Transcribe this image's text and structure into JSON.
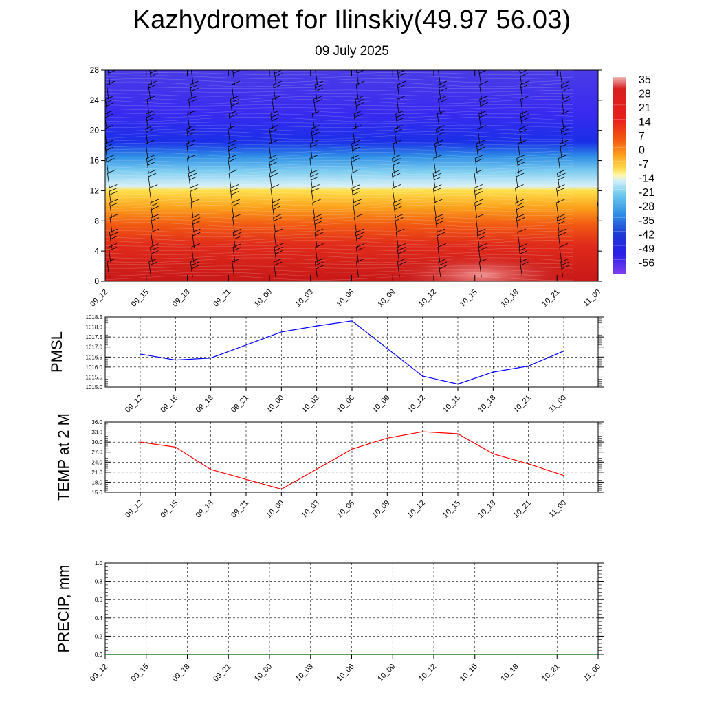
{
  "header": {
    "title": "Kazhydromet for Ilinskiy(49.97 56.03)",
    "subtitle": "09 July 2025"
  },
  "chart_data": [
    {
      "type": "heatmap",
      "title": "",
      "x_ticks": [
        "09_12",
        "09_15",
        "09_18",
        "09_21",
        "10_00",
        "10_03",
        "10_06",
        "10_09",
        "10_12",
        "10_15",
        "10_18",
        "10_21",
        "11_00"
      ],
      "y_ticks": [
        0,
        4,
        8,
        12,
        16,
        20,
        24,
        28
      ],
      "ylim": [
        0,
        28
      ],
      "colorbar_labels": [
        "35",
        "28",
        "21",
        "14",
        "7",
        "0",
        "-7",
        "-14",
        "-21",
        "-28",
        "-35",
        "-42",
        "-49",
        "-56"
      ],
      "colorbar_range": [
        -60,
        38
      ],
      "wind_barbs": true
    },
    {
      "type": "line",
      "ylabel": "PMSL",
      "y_ticks": [
        "1015.0",
        "1015.5",
        "1016.0",
        "1016.5",
        "1017.0",
        "1017.5",
        "1018.0",
        "1018.5"
      ],
      "ylim": [
        1015.0,
        1018.5
      ],
      "x_ticks": [
        "09_12",
        "09_15",
        "09_18",
        "09_21",
        "10_00",
        "10_03",
        "10_06",
        "10_09",
        "10_12",
        "10_15",
        "10_18",
        "10_21",
        "11_00"
      ],
      "line_x_index": [
        0,
        1,
        2,
        4,
        5,
        6,
        8,
        9,
        10,
        11,
        12
      ],
      "series": [
        {
          "values": [
            1016.65,
            1016.35,
            1016.45,
            1017.75,
            1018.05,
            1018.3,
            1015.55,
            1015.15,
            1015.75,
            1016.05,
            1016.8
          ],
          "color": "#0000ff"
        }
      ],
      "grid": true
    },
    {
      "type": "line",
      "ylabel": "TEMP at 2 M",
      "y_ticks": [
        "15.0",
        "18.0",
        "21.0",
        "24.0",
        "27.0",
        "30.0",
        "33.0",
        "36.0"
      ],
      "ylim": [
        15.0,
        36.0
      ],
      "x_ticks": [
        "09_12",
        "09_15",
        "09_18",
        "09_21",
        "10_00",
        "10_03",
        "10_06",
        "10_09",
        "10_12",
        "10_15",
        "10_18",
        "10_21",
        "11_00"
      ],
      "line_x_index": [
        0,
        1,
        2,
        4,
        6,
        7,
        8,
        9,
        10,
        11,
        12
      ],
      "series": [
        {
          "values": [
            30.0,
            28.5,
            21.8,
            15.9,
            27.9,
            31.2,
            33.1,
            32.5,
            26.5,
            23.5,
            20.0
          ],
          "color": "#ff0000"
        }
      ],
      "grid": true
    },
    {
      "type": "line",
      "ylabel": "PRECIP, mm",
      "y_ticks": [
        "0.0",
        "0.2",
        "0.4",
        "0.6",
        "0.8",
        "1.0"
      ],
      "ylim": [
        0.0,
        1.0
      ],
      "x_ticks": [
        "09_12",
        "09_15",
        "09_18",
        "09_21",
        "10_00",
        "10_03",
        "10_06",
        "10_09",
        "10_12",
        "10_15",
        "10_18",
        "10_21",
        "11_00"
      ],
      "series": [
        {
          "values": [
            0,
            0,
            0,
            0,
            0,
            0,
            0,
            0,
            0,
            0,
            0,
            0,
            0
          ],
          "color": "#006400"
        }
      ],
      "grid": true
    }
  ]
}
